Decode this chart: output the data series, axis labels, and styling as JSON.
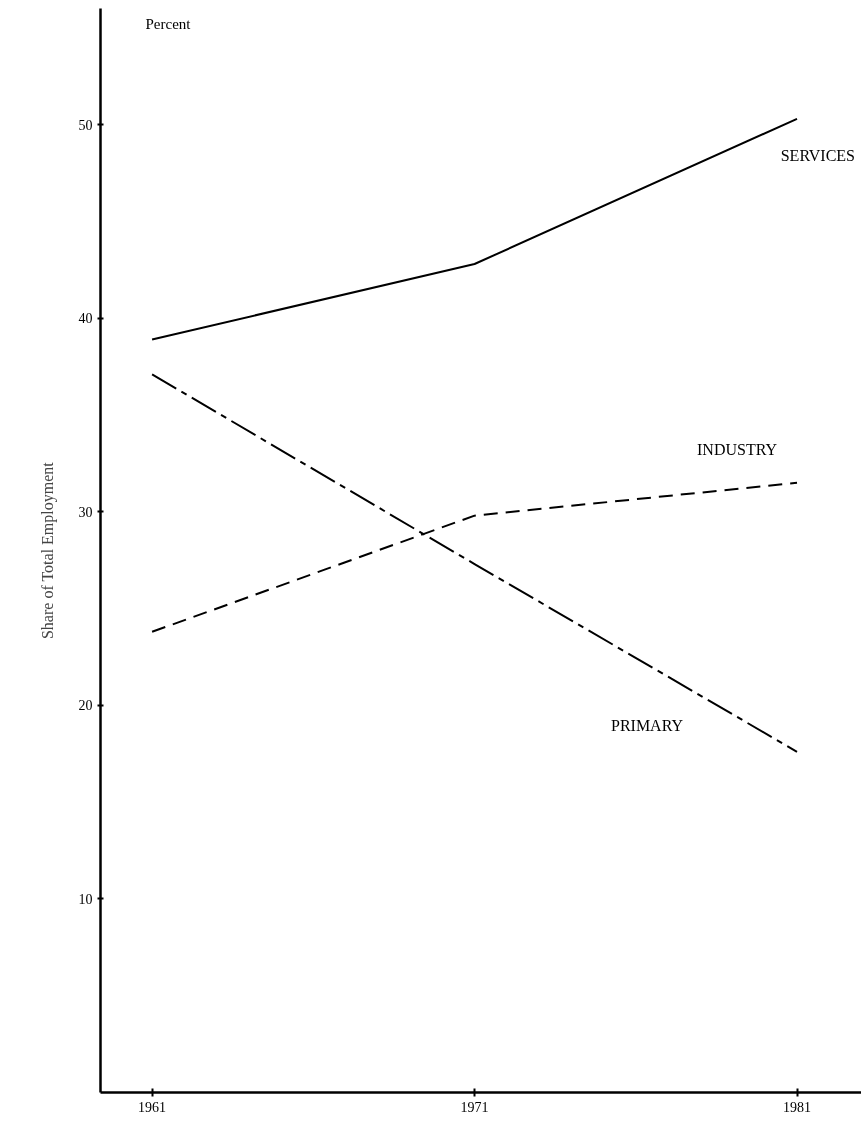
{
  "chart_data": {
    "type": "line",
    "ylabel": "Share of Total Employment",
    "annotations": [
      "Percent"
    ],
    "x": [
      1961,
      1971,
      1981
    ],
    "xlim": [
      1959.4,
      1983
    ],
    "xticks": [
      1961,
      1971,
      1981
    ],
    "ylim": [
      0,
      56
    ],
    "yticks": [
      10,
      20,
      30,
      40,
      50
    ],
    "grid": false,
    "marker": "none",
    "series": [
      {
        "name": "SERVICES",
        "color": "#000000",
        "line_style": "solid",
        "values": [
          38.9,
          42.8,
          50.3
        ]
      },
      {
        "name": "INDUSTRY",
        "color": "#000000",
        "line_style": "dashed",
        "values": [
          23.8,
          29.8,
          31.5
        ]
      },
      {
        "name": "PRIMARY",
        "color": "#000000",
        "line_style": "dashed",
        "values": [
          37.1,
          27.3,
          17.6
        ]
      }
    ]
  }
}
